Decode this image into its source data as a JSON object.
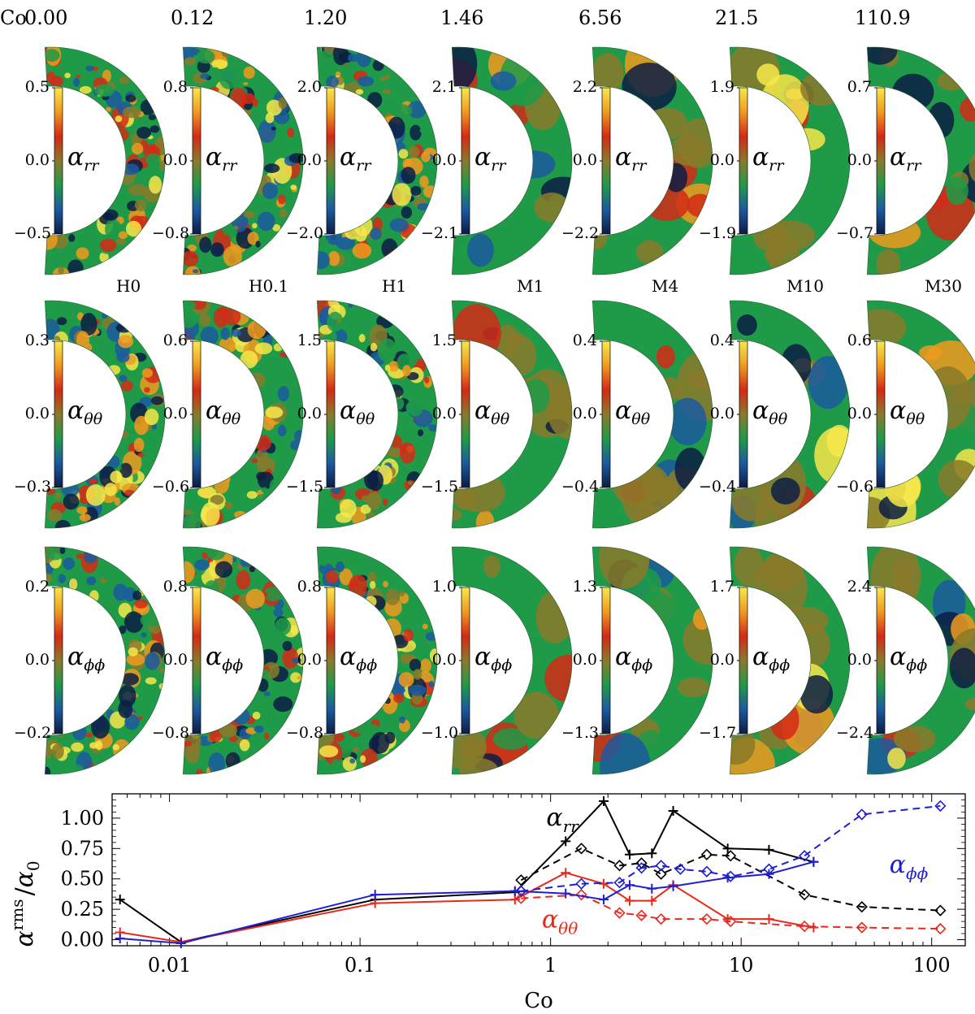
{
  "header": {
    "co_label": "Co",
    "co_values": [
      "0.00",
      "0.12",
      "1.20",
      "1.46",
      "6.56",
      "21.5",
      "110.9"
    ],
    "run_names": [
      "H0",
      "H0.1",
      "H1",
      "M1",
      "M4",
      "M10",
      "M30"
    ]
  },
  "rows": [
    {
      "symbol": "α",
      "sub": "rr",
      "max_labels": [
        "0.5",
        "0.8",
        "2.0",
        "2.1",
        "2.2",
        "1.9",
        "0.7"
      ],
      "zero_label": "0.0",
      "min_labels": [
        "−0.5",
        "−0.8",
        "−2.0",
        "−2.1",
        "−2.2",
        "−1.9",
        "−0.7"
      ]
    },
    {
      "symbol": "α",
      "sub": "θθ",
      "max_labels": [
        "0.3",
        "0.6",
        "1.5",
        "1.5",
        "0.4",
        "0.4",
        "0.6"
      ],
      "zero_label": "0.0",
      "min_labels": [
        "−0.3",
        "−0.6",
        "−1.5",
        "−1.5",
        "−0.4",
        "−0.4",
        "−0.6"
      ]
    },
    {
      "symbol": "α",
      "sub": "ϕϕ",
      "max_labels": [
        "0.2",
        "0.8",
        "0.8",
        "1.0",
        "1.3",
        "1.7",
        "2.4"
      ],
      "zero_label": "0.0",
      "min_labels": [
        "−0.2",
        "−0.8",
        "−0.8",
        "−1.0",
        "−1.3",
        "−1.7",
        "−2.4"
      ]
    }
  ],
  "colors": {
    "rr": "#000000",
    "thth": "#e8291c",
    "phph": "#1f1fd0",
    "map_green": "#1f9a48",
    "map_red": "#d42a16",
    "map_yellow": "#f7e84a",
    "map_navy": "#0c1d44"
  },
  "chart_data": {
    "type": "line",
    "xlabel": "Co",
    "ylabel": "α^rms / α_0",
    "ylabel_parts": {
      "sym": "α",
      "sup": "rms",
      "slash": "/",
      "sym2": "α",
      "sub2": "0"
    },
    "xscale": "log",
    "xlim": [
      0.005,
      150
    ],
    "ylim": [
      -0.05,
      1.2
    ],
    "xticks": [
      0.01,
      0.1,
      1,
      10,
      100
    ],
    "xtick_labels": [
      "0.01",
      "0.1",
      "1",
      "10",
      "100"
    ],
    "yticks": [
      0.0,
      0.25,
      0.5,
      0.75,
      1.0
    ],
    "ytick_labels": [
      "0.00",
      "0.25",
      "0.50",
      "0.75",
      "1.00"
    ],
    "annotations": [
      {
        "text_sym": "α",
        "text_sub": "rr",
        "color": "#000000",
        "at": [
          0.95,
          0.94
        ]
      },
      {
        "text_sym": "α",
        "text_sub": "θθ",
        "color": "#e8291c",
        "at": [
          0.9,
          0.1
        ]
      },
      {
        "text_sym": "α",
        "text_sub": "ϕϕ",
        "color": "#1f1fd0",
        "at": [
          60,
          0.55
        ]
      }
    ],
    "series": [
      {
        "key": "rr_hydro",
        "color": "#000000",
        "dash": false,
        "marker": "plus",
        "points": [
          [
            0.0055,
            0.33
          ],
          [
            0.0115,
            -0.02
          ],
          [
            0.12,
            0.33
          ],
          [
            0.65,
            0.39
          ],
          [
            1.2,
            0.81
          ],
          [
            1.9,
            1.14
          ],
          [
            2.6,
            0.7
          ],
          [
            3.4,
            0.71
          ],
          [
            4.4,
            1.06
          ],
          [
            8.5,
            0.75
          ],
          [
            14,
            0.74
          ],
          [
            24,
            0.64
          ]
        ]
      },
      {
        "key": "rr_mhd",
        "color": "#000000",
        "dash": true,
        "marker": "diamond",
        "points": [
          [
            0.7,
            0.49
          ],
          [
            1.45,
            0.75
          ],
          [
            2.3,
            0.61
          ],
          [
            3.0,
            0.63
          ],
          [
            3.8,
            0.54
          ],
          [
            6.6,
            0.7
          ],
          [
            8.8,
            0.69
          ],
          [
            21.5,
            0.37
          ],
          [
            43,
            0.27
          ],
          [
            111,
            0.24
          ]
        ]
      },
      {
        "key": "thth_hydro",
        "color": "#e8291c",
        "dash": false,
        "marker": "plus",
        "points": [
          [
            0.0055,
            0.06
          ],
          [
            0.0115,
            -0.02
          ],
          [
            0.12,
            0.3
          ],
          [
            0.65,
            0.33
          ],
          [
            1.2,
            0.55
          ],
          [
            1.9,
            0.46
          ],
          [
            2.6,
            0.32
          ],
          [
            3.4,
            0.32
          ],
          [
            4.4,
            0.45
          ],
          [
            8.5,
            0.17
          ],
          [
            14,
            0.17
          ],
          [
            24,
            0.1
          ]
        ]
      },
      {
        "key": "thth_mhd",
        "color": "#e8291c",
        "dash": true,
        "marker": "diamond",
        "points": [
          [
            0.7,
            0.34
          ],
          [
            1.45,
            0.37
          ],
          [
            2.3,
            0.22
          ],
          [
            3.0,
            0.2
          ],
          [
            3.8,
            0.17
          ],
          [
            6.6,
            0.17
          ],
          [
            8.8,
            0.15
          ],
          [
            21.5,
            0.11
          ],
          [
            43,
            0.1
          ],
          [
            111,
            0.09
          ]
        ]
      },
      {
        "key": "phph_hydro",
        "color": "#1f1fd0",
        "dash": false,
        "marker": "plus",
        "points": [
          [
            0.0055,
            0.01
          ],
          [
            0.0115,
            -0.03
          ],
          [
            0.12,
            0.37
          ],
          [
            0.65,
            0.4
          ],
          [
            1.2,
            0.38
          ],
          [
            1.9,
            0.33
          ],
          [
            2.6,
            0.45
          ],
          [
            3.4,
            0.42
          ],
          [
            4.4,
            0.44
          ],
          [
            8.5,
            0.51
          ],
          [
            14,
            0.54
          ],
          [
            24,
            0.64
          ]
        ]
      },
      {
        "key": "phph_mhd",
        "color": "#1f1fd0",
        "dash": true,
        "marker": "diamond",
        "points": [
          [
            0.7,
            0.4
          ],
          [
            1.45,
            0.46
          ],
          [
            2.3,
            0.47
          ],
          [
            3.0,
            0.59
          ],
          [
            3.8,
            0.61
          ],
          [
            4.8,
            0.58
          ],
          [
            6.6,
            0.56
          ],
          [
            8.8,
            0.52
          ],
          [
            14,
            0.58
          ],
          [
            21.5,
            0.69
          ],
          [
            43,
            1.03
          ],
          [
            111,
            1.1
          ]
        ]
      }
    ]
  }
}
